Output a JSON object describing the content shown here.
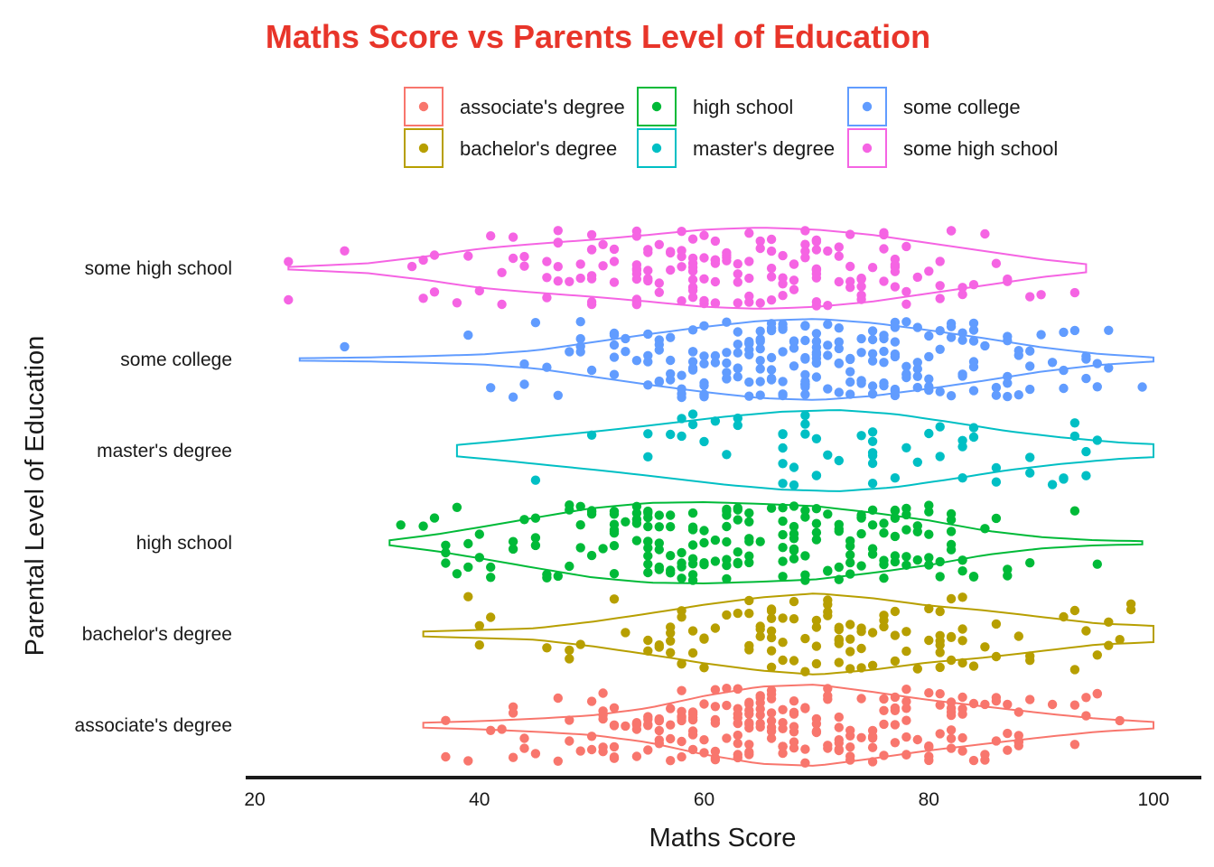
{
  "chart_data": {
    "type": "violin-jitter",
    "title": "Maths Score vs Parents Level of Education",
    "title_color": "#e8352a",
    "xlabel": "Maths Score",
    "ylabel": "Parental Level of Education",
    "xlim": [
      20,
      100
    ],
    "xticks": [
      "20",
      "40",
      "60",
      "80",
      "100"
    ],
    "x_tick_values": [
      20,
      40,
      60,
      80,
      100
    ],
    "grid": false,
    "legend_position": "top",
    "categories": [
      "associate's degree",
      "bachelor's degree",
      "high school",
      "master's degree",
      "some college",
      "some high school"
    ],
    "series": [
      {
        "name": "associate's degree",
        "color": "#f8766d",
        "range": [
          35,
          100
        ],
        "center": 67,
        "count": 222,
        "density": [
          [
            35,
            0.06
          ],
          [
            40,
            0.1
          ],
          [
            45,
            0.16
          ],
          [
            50,
            0.24
          ],
          [
            55,
            0.42
          ],
          [
            60,
            0.72
          ],
          [
            65,
            0.95
          ],
          [
            70,
            1.0
          ],
          [
            75,
            0.82
          ],
          [
            80,
            0.62
          ],
          [
            85,
            0.46
          ],
          [
            90,
            0.3
          ],
          [
            95,
            0.16
          ],
          [
            100,
            0.08
          ]
        ]
      },
      {
        "name": "bachelor's degree",
        "color": "#b79f00",
        "range": [
          35,
          100
        ],
        "center": 69,
        "count": 118,
        "density": [
          [
            35,
            0.06
          ],
          [
            40,
            0.1
          ],
          [
            45,
            0.14
          ],
          [
            50,
            0.3
          ],
          [
            55,
            0.5
          ],
          [
            60,
            0.72
          ],
          [
            65,
            0.9
          ],
          [
            70,
            1.0
          ],
          [
            75,
            0.88
          ],
          [
            80,
            0.7
          ],
          [
            85,
            0.58
          ],
          [
            90,
            0.42
          ],
          [
            95,
            0.26
          ],
          [
            100,
            0.2
          ]
        ]
      },
      {
        "name": "high school",
        "color": "#00ba38",
        "range": [
          32,
          99
        ],
        "center": 62,
        "count": 196,
        "density": [
          [
            32,
            0.06
          ],
          [
            36,
            0.2
          ],
          [
            40,
            0.38
          ],
          [
            45,
            0.62
          ],
          [
            50,
            0.85
          ],
          [
            55,
            0.98
          ],
          [
            60,
            1.0
          ],
          [
            65,
            0.96
          ],
          [
            70,
            0.9
          ],
          [
            75,
            0.74
          ],
          [
            80,
            0.55
          ],
          [
            85,
            0.3
          ],
          [
            90,
            0.14
          ],
          [
            95,
            0.06
          ],
          [
            99,
            0.04
          ]
        ]
      },
      {
        "name": "master's degree",
        "color": "#00bfc4",
        "range": [
          38,
          100
        ],
        "center": 72,
        "count": 59,
        "density": [
          [
            38,
            0.14
          ],
          [
            42,
            0.24
          ],
          [
            47,
            0.38
          ],
          [
            52,
            0.52
          ],
          [
            57,
            0.68
          ],
          [
            62,
            0.84
          ],
          [
            67,
            0.96
          ],
          [
            72,
            1.0
          ],
          [
            77,
            0.9
          ],
          [
            82,
            0.7
          ],
          [
            87,
            0.48
          ],
          [
            92,
            0.32
          ],
          [
            97,
            0.2
          ],
          [
            100,
            0.16
          ]
        ]
      },
      {
        "name": "some college",
        "color": "#619cff",
        "range": [
          24,
          100
        ],
        "center": 68,
        "count": 226,
        "density": [
          [
            24,
            0.03
          ],
          [
            30,
            0.05
          ],
          [
            35,
            0.08
          ],
          [
            40,
            0.12
          ],
          [
            45,
            0.22
          ],
          [
            50,
            0.42
          ],
          [
            55,
            0.62
          ],
          [
            60,
            0.8
          ],
          [
            65,
            0.95
          ],
          [
            70,
            1.0
          ],
          [
            75,
            0.9
          ],
          [
            80,
            0.72
          ],
          [
            85,
            0.52
          ],
          [
            90,
            0.3
          ],
          [
            95,
            0.14
          ],
          [
            100,
            0.05
          ]
        ]
      },
      {
        "name": "some high school",
        "color": "#f564e3",
        "range": [
          23,
          94
        ],
        "center": 63,
        "count": 179,
        "density": [
          [
            23,
            0.03
          ],
          [
            30,
            0.12
          ],
          [
            35,
            0.28
          ],
          [
            40,
            0.48
          ],
          [
            45,
            0.6
          ],
          [
            50,
            0.7
          ],
          [
            55,
            0.82
          ],
          [
            60,
            0.95
          ],
          [
            65,
            1.0
          ],
          [
            70,
            0.95
          ],
          [
            75,
            0.82
          ],
          [
            80,
            0.62
          ],
          [
            85,
            0.42
          ],
          [
            90,
            0.22
          ],
          [
            94,
            0.1
          ]
        ]
      }
    ]
  }
}
